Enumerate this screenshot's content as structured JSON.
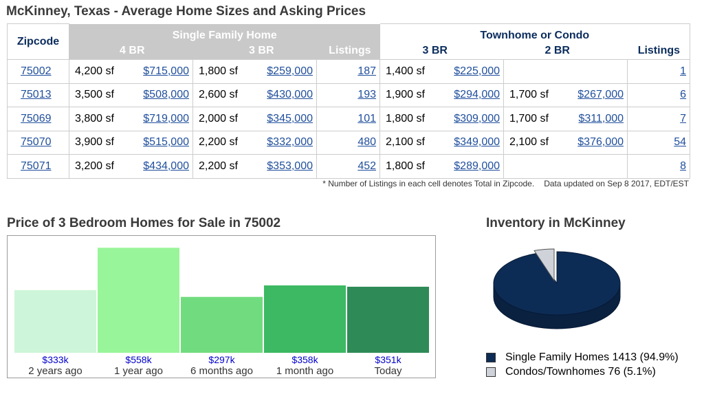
{
  "page_title": "McKinney, Texas - Average Home Sizes and Asking Prices",
  "table": {
    "zip_header": "Zipcode",
    "sf_header": "Single Family Home",
    "tc_header": "Townhome or Condo",
    "sf_cols": [
      "4 BR",
      "3 BR",
      "Listings"
    ],
    "tc_cols": [
      "3 BR",
      "2 BR",
      "Listings"
    ],
    "rows": [
      {
        "zip": "75002",
        "sf4_size": "4,200 sf",
        "sf4_price": "$715,000",
        "sf3_size": "1,800 sf",
        "sf3_price": "$259,000",
        "sf_listings": "187",
        "tc3_size": "1,400 sf",
        "tc3_price": "$225,000",
        "tc2_size": "",
        "tc2_price": "",
        "tc_listings": "1"
      },
      {
        "zip": "75013",
        "sf4_size": "3,500 sf",
        "sf4_price": "$508,000",
        "sf3_size": "2,600 sf",
        "sf3_price": "$430,000",
        "sf_listings": "193",
        "tc3_size": "1,900 sf",
        "tc3_price": "$294,000",
        "tc2_size": "1,700 sf",
        "tc2_price": "$267,000",
        "tc_listings": "6"
      },
      {
        "zip": "75069",
        "sf4_size": "3,800 sf",
        "sf4_price": "$719,000",
        "sf3_size": "2,000 sf",
        "sf3_price": "$345,000",
        "sf_listings": "101",
        "tc3_size": "1,800 sf",
        "tc3_price": "$309,000",
        "tc2_size": "1,700 sf",
        "tc2_price": "$311,000",
        "tc_listings": "7"
      },
      {
        "zip": "75070",
        "sf4_size": "3,900 sf",
        "sf4_price": "$515,000",
        "sf3_size": "2,200 sf",
        "sf3_price": "$332,000",
        "sf_listings": "480",
        "tc3_size": "2,100 sf",
        "tc3_price": "$349,000",
        "tc2_size": "2,100 sf",
        "tc2_price": "$376,000",
        "tc_listings": "54"
      },
      {
        "zip": "75071",
        "sf4_size": "3,200 sf",
        "sf4_price": "$434,000",
        "sf3_size": "2,200 sf",
        "sf3_price": "$353,000",
        "sf_listings": "452",
        "tc3_size": "1,800 sf",
        "tc3_price": "$289,000",
        "tc2_size": "",
        "tc2_price": "",
        "tc_listings": "8"
      }
    ]
  },
  "footnote": {
    "note": "* Number of Listings in each cell denotes Total in Zipcode.",
    "updated": "Data updated on Sep 8 2017, EDT/EST"
  },
  "chart_data": [
    {
      "type": "bar",
      "title": "Price of 3 Bedroom Homes for Sale in 75002",
      "categories": [
        "2 years ago",
        "1 year ago",
        "6 months ago",
        "1 month ago",
        "Today"
      ],
      "values": [
        333,
        558,
        297,
        358,
        351
      ],
      "value_labels": [
        "$333k",
        "$558k",
        "$297k",
        "$358k",
        "$351k"
      ],
      "unit": "$k",
      "ylim": [
        0,
        570
      ],
      "colors": [
        "#cdf5d9",
        "#99f59a",
        "#71dc7f",
        "#3cb962",
        "#2e8b57"
      ],
      "label_color": "#0000cc",
      "grid": false
    },
    {
      "type": "pie",
      "title": "Inventory in McKinney",
      "slices": [
        {
          "label": "Single Family Homes",
          "count": "1413",
          "percent": "94.9%",
          "value": 94.9,
          "color": "#0d2c55"
        },
        {
          "label": "Condos/Townhomes",
          "count": "76",
          "percent": "5.1%",
          "value": 5.1,
          "color": "#cfd3d9"
        }
      ],
      "legend_placement": "bottom"
    }
  ]
}
